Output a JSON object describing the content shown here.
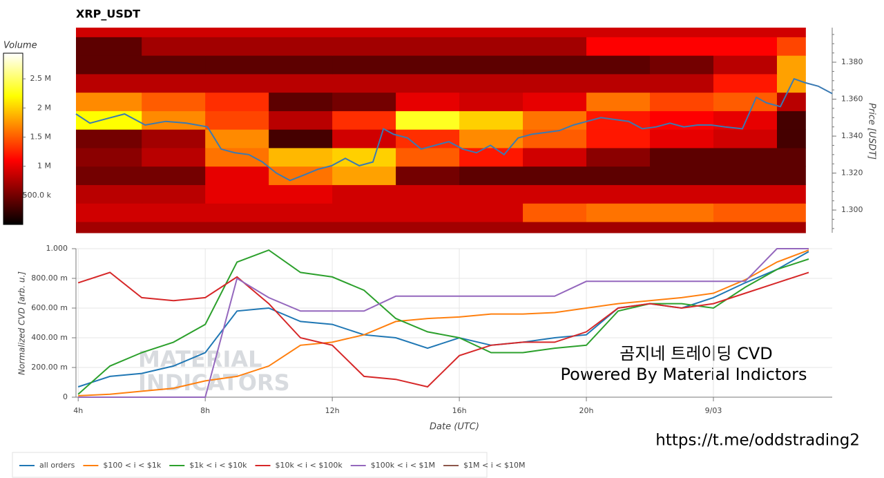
{
  "chart_data": [
    {
      "type": "heatmap",
      "title": "XRP_USDT",
      "y_label": "Price [USDT]",
      "colorbar_label": "Volume",
      "colorbar_lim": [
        0,
        2940000
      ],
      "colorbar_ticks": [
        {
          "value": 500000,
          "label": "500.0 k"
        },
        {
          "value": 1000000,
          "label": "1 M"
        },
        {
          "value": 1500000,
          "label": "1.5 M"
        },
        {
          "value": 2000000,
          "label": "2 M"
        },
        {
          "value": 2500000,
          "label": "2.5 M"
        }
      ],
      "xlim": [
        3.93,
        27.74
      ],
      "ylim": [
        1.2877,
        1.3987
      ],
      "yticks": [
        {
          "value": 1.3,
          "label": "1.300"
        },
        {
          "value": 1.32,
          "label": "1.320"
        },
        {
          "value": 1.34,
          "label": "1.340"
        },
        {
          "value": 1.36,
          "label": "1.360"
        },
        {
          "value": 1.38,
          "label": "1.380"
        }
      ],
      "x_bins": [
        3.93,
        6,
        8,
        10,
        12,
        14,
        16,
        18,
        20,
        22,
        24,
        26,
        26.9
      ],
      "y_bins": [
        1.2877,
        1.2937,
        1.3037,
        1.3137,
        1.3237,
        1.3337,
        1.3437,
        1.3537,
        1.3637,
        1.3737,
        1.3837,
        1.3937,
        1.3987
      ],
      "z": [
        [
          700000,
          700000,
          700000,
          700000,
          700000,
          700000,
          700000,
          700000,
          700000,
          700000,
          700000,
          700000
        ],
        [
          900000,
          900000,
          900000,
          900000,
          900000,
          900000,
          900000,
          1500000,
          1600000,
          1600000,
          1500000,
          1500000
        ],
        [
          800000,
          800000,
          1000000,
          1000000,
          900000,
          900000,
          900000,
          900000,
          900000,
          900000,
          900000,
          900000
        ],
        [
          500000,
          500000,
          1000000,
          1600000,
          1800000,
          500000,
          400000,
          400000,
          400000,
          400000,
          400000,
          400000
        ],
        [
          600000,
          800000,
          1600000,
          1900000,
          2000000,
          1500000,
          1200000,
          900000,
          600000,
          400000,
          400000,
          400000
        ],
        [
          500000,
          700000,
          1700000,
          300000,
          900000,
          1300000,
          1700000,
          1500000,
          1200000,
          1000000,
          900000,
          300000
        ],
        [
          2200000,
          1700000,
          1400000,
          800000,
          1300000,
          2300000,
          2000000,
          1600000,
          1200000,
          1100000,
          1000000,
          300000
        ],
        [
          1700000,
          1500000,
          1300000,
          400000,
          500000,
          1000000,
          900000,
          1000000,
          1600000,
          1400000,
          1500000,
          800000
        ],
        [
          800000,
          800000,
          800000,
          800000,
          800000,
          800000,
          800000,
          800000,
          800000,
          800000,
          1200000,
          1800000
        ],
        [
          400000,
          400000,
          400000,
          400000,
          400000,
          400000,
          400000,
          400000,
          400000,
          500000,
          800000,
          1800000
        ],
        [
          400000,
          700000,
          700000,
          700000,
          700000,
          700000,
          700000,
          700000,
          1100000,
          1100000,
          1100000,
          1400000
        ],
        [
          900000,
          900000,
          900000,
          900000,
          900000,
          900000,
          900000,
          900000,
          900000,
          900000,
          900000,
          900000
        ]
      ],
      "price": {
        "color": "#3a7ab3",
        "x": [
          3.93,
          4.37,
          5.02,
          5.46,
          6.11,
          6.76,
          7.41,
          8.07,
          8.5,
          8.93,
          9.37,
          9.8,
          10.24,
          10.67,
          11.11,
          11.54,
          11.98,
          12.41,
          12.85,
          13.28,
          13.61,
          13.93,
          14.37,
          14.8,
          15.24,
          15.67,
          16.11,
          16.54,
          16.98,
          17.41,
          17.85,
          18.28,
          18.72,
          19.15,
          19.59,
          20.02,
          20.46,
          20.89,
          21.33,
          21.76,
          22.2,
          22.63,
          23.07,
          23.5,
          23.93,
          24.37,
          24.91,
          25.35,
          25.67,
          26.11,
          26.54,
          26.87,
          27.3,
          27.74
        ],
        "values": [
          1.352,
          1.347,
          1.35,
          1.352,
          1.346,
          1.348,
          1.347,
          1.345,
          1.333,
          1.331,
          1.33,
          1.326,
          1.32,
          1.316,
          1.319,
          1.322,
          1.324,
          1.328,
          1.324,
          1.326,
          1.344,
          1.341,
          1.339,
          1.333,
          1.335,
          1.337,
          1.333,
          1.331,
          1.335,
          1.33,
          1.339,
          1.341,
          1.342,
          1.343,
          1.346,
          1.348,
          1.35,
          1.349,
          1.348,
          1.344,
          1.345,
          1.347,
          1.345,
          1.346,
          1.346,
          1.345,
          1.344,
          1.361,
          1.358,
          1.356,
          1.371,
          1.369,
          1.367,
          1.363
        ]
      }
    },
    {
      "type": "line",
      "x_label": "Date (UTC)",
      "y_label": "Normalized CVD [arb. u.]",
      "xlim": [
        3.93,
        27.74
      ],
      "ylim": [
        0,
        1
      ],
      "xticks": [
        {
          "value": 4,
          "label": "4h"
        },
        {
          "value": 8,
          "label": "8h"
        },
        {
          "value": 12,
          "label": "12h"
        },
        {
          "value": 16,
          "label": "16h"
        },
        {
          "value": 20,
          "label": "20h"
        },
        {
          "value": 24,
          "label": "9/03"
        }
      ],
      "yticks": [
        0,
        {
          "value": 0.2,
          "label": "200.00 m"
        },
        {
          "value": 0.4,
          "label": "400.00 m"
        },
        {
          "value": 0.6,
          "label": "600.00 m"
        },
        {
          "value": 0.8,
          "label": "800.00 m"
        },
        {
          "value": 1,
          "label": "1.000"
        }
      ],
      "grid": true,
      "x": [
        4,
        5,
        6,
        7,
        8,
        9,
        10,
        11,
        12,
        13,
        14,
        15,
        16,
        17,
        18,
        19,
        20,
        21,
        22,
        23,
        24,
        25,
        26,
        27
      ],
      "series": [
        {
          "name": "all orders",
          "color": "#1f77b4",
          "values": [
            0.07,
            0.14,
            0.16,
            0.21,
            0.3,
            0.58,
            0.6,
            0.51,
            0.49,
            0.42,
            0.4,
            0.33,
            0.4,
            0.35,
            0.37,
            0.4,
            0.42,
            0.6,
            0.63,
            0.6,
            0.67,
            0.77,
            0.86,
            0.98
          ]
        },
        {
          "name": "$100 < i < $1k",
          "color": "#ff7f0e",
          "values": [
            0.01,
            0.02,
            0.04,
            0.06,
            0.11,
            0.14,
            0.21,
            0.35,
            0.37,
            0.42,
            0.51,
            0.53,
            0.54,
            0.56,
            0.56,
            0.57,
            0.6,
            0.63,
            0.65,
            0.67,
            0.7,
            0.79,
            0.91,
            0.99
          ]
        },
        {
          "name": "$1k < i < $10k",
          "color": "#2ca02c",
          "values": [
            0.02,
            0.21,
            0.3,
            0.37,
            0.49,
            0.91,
            0.99,
            0.84,
            0.81,
            0.72,
            0.53,
            0.44,
            0.4,
            0.3,
            0.3,
            0.33,
            0.35,
            0.58,
            0.63,
            0.63,
            0.6,
            0.74,
            0.86,
            0.93
          ]
        },
        {
          "name": "$10k < i < $100k",
          "color": "#d62728",
          "values": [
            0.77,
            0.84,
            0.67,
            0.65,
            0.67,
            0.81,
            0.63,
            0.4,
            0.35,
            0.14,
            0.12,
            0.07,
            0.28,
            0.35,
            0.37,
            0.37,
            0.44,
            0.6,
            0.63,
            0.6,
            0.63,
            0.7,
            0.77,
            0.84
          ]
        },
        {
          "name": "$100k < i < $1M",
          "color": "#9467bd",
          "values": [
            0,
            0,
            0,
            0,
            0,
            0.8,
            0.67,
            0.58,
            0.58,
            0.58,
            0.68,
            0.68,
            0.68,
            0.68,
            0.68,
            0.68,
            0.78,
            0.78,
            0.78,
            0.78,
            0.78,
            0.78,
            1,
            1
          ]
        },
        {
          "name": "$1M < i < $10M",
          "color": "#8c564b",
          "values": [
            null,
            null,
            null,
            null,
            null,
            null,
            null,
            null,
            null,
            null,
            null,
            null,
            null,
            null,
            null,
            null,
            null,
            null,
            null,
            null,
            null,
            null,
            null,
            null
          ]
        }
      ]
    }
  ],
  "watermark": [
    "MATERIAL",
    "INDICATORS"
  ],
  "annotation": [
    "곰지네 트레이딩 CVD",
    "Powered By Material Indictors"
  ],
  "link": "https://t.me/oddstrading2"
}
